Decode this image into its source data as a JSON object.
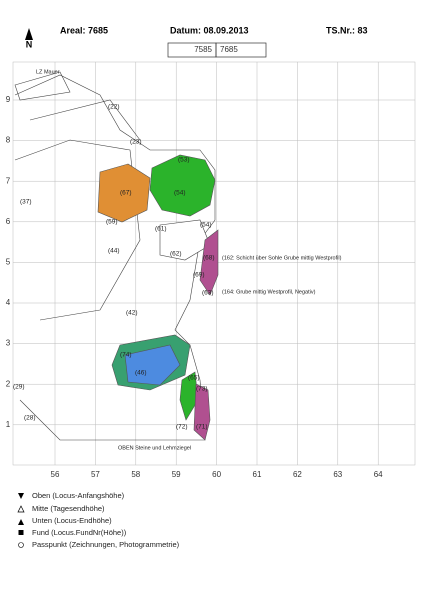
{
  "header": {
    "areal": "Areal: 7685",
    "datum": "Datum: 08.09.2013",
    "ts_nr": "TS.Nr.: 83",
    "sheet_left": "7585",
    "sheet_right": "7685",
    "north": "N"
  },
  "map": {
    "x_labels": [
      "56",
      "57",
      "58",
      "59",
      "60",
      "61",
      "62",
      "63",
      "64"
    ],
    "y_labels": [
      "9",
      "8",
      "7",
      "6",
      "5",
      "4",
      "3",
      "2",
      "1"
    ],
    "features": [
      "(22)",
      "(23)",
      "(37)",
      "(44)",
      "(59)",
      "(67)",
      "(54)",
      "(53)",
      "(61)",
      "(54)",
      "(62)",
      "(68)",
      "(69)",
      "(63)",
      "(42)",
      "(74)",
      "(46)",
      "(65)",
      "(73)",
      "(72)",
      "(71)",
      "(29)",
      "(28)"
    ],
    "notes": [
      "(162: Schicht über Sohle Grube mittig Westprofil)",
      "(164: Grube mittig Westprofil, Negativ)",
      "LZ Mauer",
      "OBEN Steine und Lehmziegel"
    ]
  },
  "legend": [
    "Oben (Locus-Anfangshöhe)",
    "Mitte (Tagesendhöhe)",
    "Unten (Locus-Endhöhe)",
    "Fund (Locus.FundNr(Höhe))",
    "Passpunkt (Zeichnungen, Photogrammetrie)"
  ]
}
